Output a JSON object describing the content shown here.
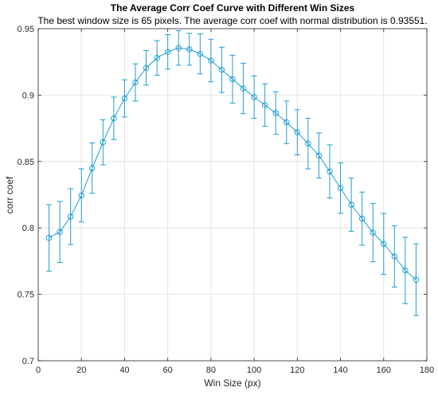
{
  "chart_data": {
    "type": "line",
    "title": "The Average Corr Coef Curve with Different Win Sizes",
    "subtitle": "The best window size is 65 pixels. The average corr coef with normal distribution is 0.93551.",
    "xlabel": "Win Size (px)",
    "ylabel": "corr coef",
    "xlim": [
      0,
      180
    ],
    "ylim": [
      0.7,
      0.95
    ],
    "xticks": [
      0,
      20,
      40,
      60,
      80,
      100,
      120,
      140,
      160,
      180
    ],
    "yticks": [
      0.7,
      0.75,
      0.8,
      0.85,
      0.9,
      0.95
    ],
    "grid": true,
    "line_color": "#1f9fcf",
    "marker": "circle",
    "error_bars": true,
    "x": [
      5,
      10,
      15,
      20,
      25,
      30,
      35,
      40,
      45,
      50,
      55,
      60,
      65,
      70,
      75,
      80,
      85,
      90,
      95,
      100,
      105,
      110,
      115,
      120,
      125,
      130,
      135,
      140,
      145,
      150,
      155,
      160,
      165,
      170,
      175
    ],
    "values": [
      0.7925,
      0.797,
      0.8085,
      0.8245,
      0.845,
      0.8645,
      0.8825,
      0.8975,
      0.9095,
      0.9205,
      0.928,
      0.9325,
      0.9355,
      0.9345,
      0.931,
      0.926,
      0.919,
      0.912,
      0.905,
      0.8985,
      0.8925,
      0.8865,
      0.8795,
      0.872,
      0.8635,
      0.8545,
      0.8425,
      0.83,
      0.8175,
      0.807,
      0.7965,
      0.788,
      0.7785,
      0.768,
      0.761
    ],
    "error": [
      0.025,
      0.023,
      0.021,
      0.02,
      0.019,
      0.017,
      0.016,
      0.014,
      0.014,
      0.013,
      0.013,
      0.013,
      0.013,
      0.012,
      0.015,
      0.016,
      0.017,
      0.018,
      0.019,
      0.016,
      0.016,
      0.016,
      0.016,
      0.017,
      0.019,
      0.017,
      0.02,
      0.019,
      0.02,
      0.02,
      0.022,
      0.023,
      0.023,
      0.025,
      0.027
    ]
  }
}
